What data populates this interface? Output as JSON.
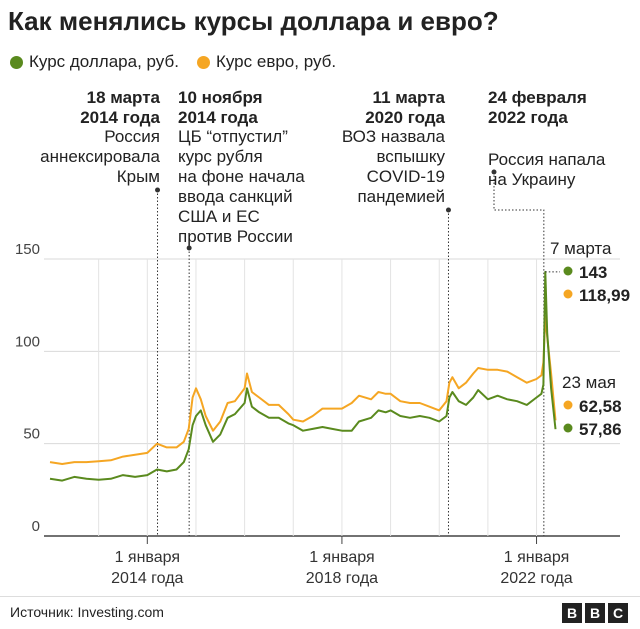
{
  "title": "Как менялись курсы доллара и евро?",
  "legend": [
    {
      "label": "Курс доллара, руб.",
      "color": "#5a8a1e"
    },
    {
      "label": "Курс евро, руб.",
      "color": "#f5a623"
    }
  ],
  "source": "Источник: Investing.com",
  "brand": [
    "B",
    "B",
    "C"
  ],
  "events": [
    {
      "date_lines": [
        "18 марта",
        "2014 года"
      ],
      "text_lines": [
        "Россия",
        "аннексировала",
        "Крым"
      ]
    },
    {
      "date_lines": [
        "10 ноября",
        "2014 года"
      ],
      "text_lines": [
        "ЦБ “отпустил”",
        "курс рубля",
        "на фоне начала",
        "ввода санкций",
        "США и ЕС",
        "против России"
      ]
    },
    {
      "date_lines": [
        "11 марта",
        "2020 года"
      ],
      "text_lines": [
        "ВОЗ назвала",
        "вспышку",
        "COVID-19",
        "пандемией"
      ]
    },
    {
      "date_lines": [
        "24 февраля",
        "2022 года"
      ],
      "text_lines": [
        "Россия напала",
        "на Украину"
      ]
    }
  ],
  "callouts": {
    "march7": {
      "label": "7 марта",
      "usd": "143",
      "eur": "118,99"
    },
    "may23": {
      "label": "23 мая",
      "eur": "62,58",
      "usd": "57,86"
    }
  },
  "chart_data": {
    "type": "line",
    "x_unit": "year",
    "ylim": [
      0,
      150
    ],
    "yticks": [
      0,
      50,
      100,
      150
    ],
    "ytick_labels": [
      "0",
      "50",
      "100",
      "150"
    ],
    "xticks": [
      {
        "x": 2014.0,
        "label_lines": [
          "1 января",
          "2014 года"
        ]
      },
      {
        "x": 2018.0,
        "label_lines": [
          "1 января",
          "2018 года"
        ]
      },
      {
        "x": 2022.0,
        "label_lines": [
          "1 января",
          "2022 года"
        ]
      }
    ],
    "series": [
      {
        "name": "Курс доллара, руб.",
        "color": "#5a8a1e",
        "points": [
          [
            2012.0,
            31
          ],
          [
            2012.25,
            30
          ],
          [
            2012.5,
            32
          ],
          [
            2012.75,
            31
          ],
          [
            2013.0,
            30.5
          ],
          [
            2013.25,
            31
          ],
          [
            2013.5,
            33
          ],
          [
            2013.75,
            32
          ],
          [
            2014.0,
            33
          ],
          [
            2014.2,
            36
          ],
          [
            2014.4,
            35
          ],
          [
            2014.6,
            36
          ],
          [
            2014.75,
            40
          ],
          [
            2014.85,
            47
          ],
          [
            2014.93,
            60
          ],
          [
            2015.0,
            65
          ],
          [
            2015.1,
            68
          ],
          [
            2015.2,
            60
          ],
          [
            2015.35,
            51
          ],
          [
            2015.5,
            55
          ],
          [
            2015.65,
            64
          ],
          [
            2015.8,
            66
          ],
          [
            2016.0,
            72
          ],
          [
            2016.05,
            80
          ],
          [
            2016.15,
            70
          ],
          [
            2016.3,
            67
          ],
          [
            2016.5,
            64
          ],
          [
            2016.7,
            64
          ],
          [
            2016.9,
            61
          ],
          [
            2017.0,
            60
          ],
          [
            2017.2,
            57
          ],
          [
            2017.4,
            58
          ],
          [
            2017.6,
            59
          ],
          [
            2017.8,
            58
          ],
          [
            2018.0,
            57
          ],
          [
            2018.2,
            57
          ],
          [
            2018.35,
            62
          ],
          [
            2018.6,
            64
          ],
          [
            2018.75,
            68
          ],
          [
            2018.9,
            67
          ],
          [
            2019.0,
            68
          ],
          [
            2019.2,
            65
          ],
          [
            2019.4,
            64
          ],
          [
            2019.6,
            65
          ],
          [
            2019.8,
            64
          ],
          [
            2020.0,
            62
          ],
          [
            2020.15,
            65
          ],
          [
            2020.21,
            75
          ],
          [
            2020.27,
            78
          ],
          [
            2020.4,
            73
          ],
          [
            2020.55,
            71
          ],
          [
            2020.7,
            75
          ],
          [
            2020.8,
            79
          ],
          [
            2021.0,
            74
          ],
          [
            2021.2,
            76
          ],
          [
            2021.4,
            74
          ],
          [
            2021.6,
            73
          ],
          [
            2021.8,
            71
          ],
          [
            2022.0,
            75
          ],
          [
            2022.1,
            77
          ],
          [
            2022.14,
            82
          ],
          [
            2022.18,
            143
          ],
          [
            2022.22,
            110
          ],
          [
            2022.3,
            80
          ],
          [
            2022.39,
            57.86
          ]
        ]
      },
      {
        "name": "Курс евро, руб.",
        "color": "#f5a623",
        "points": [
          [
            2012.0,
            40
          ],
          [
            2012.25,
            39
          ],
          [
            2012.5,
            40
          ],
          [
            2012.75,
            40
          ],
          [
            2013.0,
            40.5
          ],
          [
            2013.25,
            41
          ],
          [
            2013.5,
            43
          ],
          [
            2013.75,
            44
          ],
          [
            2014.0,
            45
          ],
          [
            2014.2,
            50
          ],
          [
            2014.4,
            48
          ],
          [
            2014.6,
            48
          ],
          [
            2014.75,
            51
          ],
          [
            2014.85,
            58
          ],
          [
            2014.93,
            75
          ],
          [
            2015.0,
            80
          ],
          [
            2015.1,
            74
          ],
          [
            2015.2,
            65
          ],
          [
            2015.35,
            57
          ],
          [
            2015.5,
            62
          ],
          [
            2015.65,
            72
          ],
          [
            2015.8,
            73
          ],
          [
            2016.0,
            80
          ],
          [
            2016.05,
            88
          ],
          [
            2016.15,
            78
          ],
          [
            2016.3,
            75
          ],
          [
            2016.5,
            71
          ],
          [
            2016.7,
            71
          ],
          [
            2016.9,
            66
          ],
          [
            2017.0,
            63
          ],
          [
            2017.2,
            62
          ],
          [
            2017.4,
            65
          ],
          [
            2017.6,
            69
          ],
          [
            2017.8,
            69
          ],
          [
            2018.0,
            69
          ],
          [
            2018.2,
            72
          ],
          [
            2018.35,
            76
          ],
          [
            2018.6,
            74
          ],
          [
            2018.75,
            78
          ],
          [
            2018.9,
            77
          ],
          [
            2019.0,
            77
          ],
          [
            2019.2,
            73
          ],
          [
            2019.4,
            72
          ],
          [
            2019.6,
            72
          ],
          [
            2019.8,
            70
          ],
          [
            2020.0,
            68
          ],
          [
            2020.15,
            73
          ],
          [
            2020.21,
            83
          ],
          [
            2020.27,
            86
          ],
          [
            2020.4,
            80
          ],
          [
            2020.55,
            83
          ],
          [
            2020.7,
            88
          ],
          [
            2020.8,
            91
          ],
          [
            2021.0,
            90
          ],
          [
            2021.2,
            90
          ],
          [
            2021.4,
            89
          ],
          [
            2021.6,
            86
          ],
          [
            2021.8,
            83
          ],
          [
            2022.0,
            85
          ],
          [
            2022.1,
            87
          ],
          [
            2022.14,
            94
          ],
          [
            2022.18,
            118.99
          ],
          [
            2022.22,
            108
          ],
          [
            2022.3,
            88
          ],
          [
            2022.39,
            62.58
          ]
        ]
      }
    ]
  }
}
